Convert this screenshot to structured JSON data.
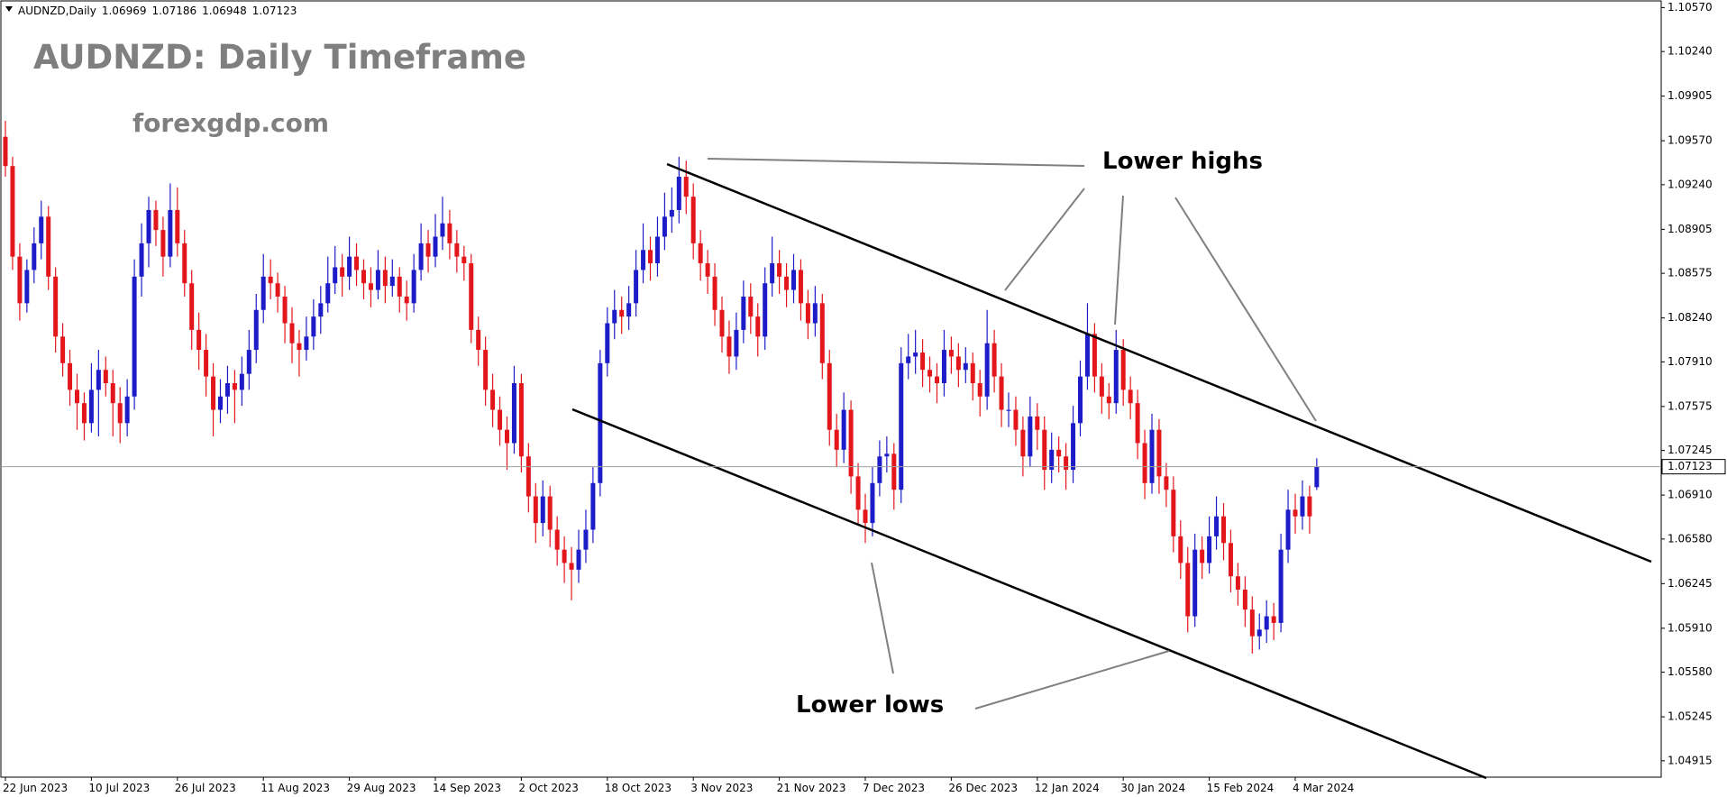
{
  "chart_data": {
    "type": "candlestick",
    "symbol": "AUDNZD,Daily",
    "title": "AUDNZD: Daily Timeframe",
    "subtitle": "forexgdp.com",
    "annotations": [
      "Lower highs",
      "Lower lows"
    ],
    "up_color": "#1c1cc8",
    "down_color": "#e3161c",
    "ylim": [
      1.04792,
      1.1062
    ],
    "yticks": [
      {
        "value": 1.1057,
        "label": "1.10570"
      },
      {
        "value": 1.1024,
        "label": "1.10240"
      },
      1.09905,
      {
        "value": 1.0957,
        "label": "1.09570"
      },
      {
        "value": 1.0924,
        "label": "1.09240"
      },
      1.08905,
      1.08575,
      {
        "value": 1.0824,
        "label": "1.08240"
      },
      {
        "value": 1.0791,
        "label": "1.07910"
      },
      1.07575,
      1.07245,
      {
        "value": 1.0691,
        "label": "1.06910"
      },
      {
        "value": 1.0658,
        "label": "1.06580"
      },
      1.06245,
      {
        "value": 1.0591,
        "label": "1.05910"
      },
      {
        "value": 1.0558,
        "label": "1.05580"
      },
      1.05245,
      1.04915
    ],
    "categories": [
      "22 Jun 2023",
      null,
      null,
      null,
      null,
      null,
      null,
      null,
      null,
      null,
      null,
      null,
      "10 Jul 2023",
      null,
      null,
      null,
      null,
      null,
      null,
      null,
      null,
      null,
      null,
      null,
      "26 Jul 2023",
      null,
      null,
      null,
      null,
      null,
      null,
      null,
      null,
      null,
      null,
      null,
      "11 Aug 2023",
      null,
      null,
      null,
      null,
      null,
      null,
      null,
      null,
      null,
      null,
      null,
      "29 Aug 2023",
      null,
      null,
      null,
      null,
      null,
      null,
      null,
      null,
      null,
      null,
      null,
      "14 Sep 2023",
      null,
      null,
      null,
      null,
      null,
      null,
      null,
      null,
      null,
      null,
      null,
      "2 Oct 2023",
      null,
      null,
      null,
      null,
      null,
      null,
      null,
      null,
      null,
      null,
      null,
      "18 Oct 2023",
      null,
      null,
      null,
      null,
      null,
      null,
      null,
      null,
      null,
      null,
      null,
      "3 Nov 2023",
      null,
      null,
      null,
      null,
      null,
      null,
      null,
      null,
      null,
      null,
      null,
      "21 Nov 2023",
      null,
      null,
      null,
      null,
      null,
      null,
      null,
      null,
      null,
      null,
      null,
      "7 Dec 2023",
      null,
      null,
      null,
      null,
      null,
      null,
      null,
      null,
      null,
      null,
      null,
      "26 Dec 2023",
      null,
      null,
      null,
      null,
      null,
      null,
      null,
      null,
      null,
      null,
      null,
      "12 Jan 2024",
      null,
      null,
      null,
      null,
      null,
      null,
      null,
      null,
      null,
      null,
      null,
      "30 Jan 2024",
      null,
      null,
      null,
      null,
      null,
      null,
      null,
      null,
      null,
      null,
      null,
      "15 Feb 2024",
      null,
      null,
      null,
      null,
      null,
      null,
      null,
      null,
      null,
      null,
      null,
      "4 Mar 2024",
      null,
      null,
      null
    ],
    "ohlc": [
      [
        1.096,
        1.0972,
        1.093,
        1.0938
      ],
      [
        1.0938,
        1.0945,
        1.086,
        1.087
      ],
      [
        1.087,
        1.088,
        1.0822,
        1.0835
      ],
      [
        1.0835,
        1.0868,
        1.0828,
        1.086
      ],
      [
        1.086,
        1.0892,
        1.085,
        1.088
      ],
      [
        1.088,
        1.0912,
        1.0868,
        1.09
      ],
      [
        1.09,
        1.0908,
        1.0845,
        1.0855
      ],
      [
        1.0855,
        1.0862,
        1.0798,
        1.081
      ],
      [
        1.081,
        1.082,
        1.078,
        1.079
      ],
      [
        1.079,
        1.08,
        1.0758,
        1.077
      ],
      [
        1.077,
        1.0782,
        1.074,
        1.076
      ],
      [
        1.076,
        1.0768,
        1.0732,
        1.0745
      ],
      [
        1.0745,
        1.079,
        1.0738,
        1.077
      ],
      [
        1.077,
        1.08,
        1.0735,
        1.0785
      ],
      [
        1.0785,
        1.0795,
        1.0765,
        1.0775
      ],
      [
        1.0775,
        1.0785,
        1.0735,
        1.076
      ],
      [
        1.076,
        1.0772,
        1.073,
        1.0745
      ],
      [
        1.0745,
        1.0778,
        1.0735,
        1.0765
      ],
      [
        1.0765,
        1.0868,
        1.0755,
        1.0855
      ],
      [
        1.0855,
        1.0895,
        1.084,
        1.088
      ],
      [
        1.088,
        1.0915,
        1.0862,
        1.0905
      ],
      [
        1.0905,
        1.0912,
        1.0878,
        1.089
      ],
      [
        1.089,
        1.09,
        1.0855,
        1.087
      ],
      [
        1.087,
        1.0925,
        1.0862,
        1.0905
      ],
      [
        1.0905,
        1.0922,
        1.087,
        1.088
      ],
      [
        1.088,
        1.089,
        1.084,
        1.085
      ],
      [
        1.085,
        1.086,
        1.08,
        1.0815
      ],
      [
        1.0815,
        1.0828,
        1.0785,
        1.08
      ],
      [
        1.08,
        1.0812,
        1.0765,
        1.078
      ],
      [
        1.078,
        1.079,
        1.0735,
        1.0755
      ],
      [
        1.0755,
        1.0778,
        1.0745,
        1.0765
      ],
      [
        1.0765,
        1.0788,
        1.0752,
        1.0775
      ],
      [
        1.0775,
        1.0785,
        1.0745,
        1.077
      ],
      [
        1.077,
        1.0795,
        1.0758,
        1.0782
      ],
      [
        1.0782,
        1.0815,
        1.077,
        1.08
      ],
      [
        1.08,
        1.0842,
        1.079,
        1.083
      ],
      [
        1.083,
        1.0872,
        1.082,
        1.0855
      ],
      [
        1.0855,
        1.0868,
        1.0838,
        1.085
      ],
      [
        1.085,
        1.0858,
        1.0828,
        1.084
      ],
      [
        1.084,
        1.0848,
        1.0805,
        1.082
      ],
      [
        1.082,
        1.0832,
        1.079,
        1.0805
      ],
      [
        1.0805,
        1.0815,
        1.078,
        1.08
      ],
      [
        1.08,
        1.0825,
        1.0792,
        1.081
      ],
      [
        1.081,
        1.0838,
        1.08,
        1.0825
      ],
      [
        1.0825,
        1.0848,
        1.0812,
        1.0835
      ],
      [
        1.0835,
        1.087,
        1.0828,
        1.085
      ],
      [
        1.085,
        1.0878,
        1.0842,
        1.0862
      ],
      [
        1.0862,
        1.0872,
        1.084,
        1.0855
      ],
      [
        1.0855,
        1.0885,
        1.0845,
        1.087
      ],
      [
        1.087,
        1.088,
        1.0848,
        1.086
      ],
      [
        1.086,
        1.0868,
        1.0838,
        1.085
      ],
      [
        1.085,
        1.0862,
        1.0832,
        1.0845
      ],
      [
        1.0845,
        1.0875,
        1.0838,
        1.086
      ],
      [
        1.086,
        1.087,
        1.0835,
        1.0848
      ],
      [
        1.0848,
        1.0868,
        1.084,
        1.0855
      ],
      [
        1.0855,
        1.0862,
        1.0828,
        1.084
      ],
      [
        1.084,
        1.0852,
        1.0822,
        1.0835
      ],
      [
        1.0835,
        1.0872,
        1.0828,
        1.086
      ],
      [
        1.086,
        1.0895,
        1.0852,
        1.088
      ],
      [
        1.088,
        1.089,
        1.0858,
        1.087
      ],
      [
        1.087,
        1.0902,
        1.0862,
        1.0885
      ],
      [
        1.0885,
        1.0915,
        1.0875,
        1.0895
      ],
      [
        1.0895,
        1.0905,
        1.0868,
        1.088
      ],
      [
        1.088,
        1.089,
        1.0858,
        1.087
      ],
      [
        1.087,
        1.0878,
        1.0852,
        1.0865
      ],
      [
        1.0865,
        1.0872,
        1.0805,
        1.0815
      ],
      [
        1.0815,
        1.0825,
        1.0788,
        1.08
      ],
      [
        1.08,
        1.081,
        1.0758,
        1.077
      ],
      [
        1.077,
        1.0782,
        1.0742,
        1.0755
      ],
      [
        1.0755,
        1.0765,
        1.0728,
        1.074
      ],
      [
        1.074,
        1.075,
        1.071,
        1.073
      ],
      [
        1.073,
        1.0788,
        1.0722,
        1.0775
      ],
      [
        1.0775,
        1.0782,
        1.0708,
        1.072
      ],
      [
        1.072,
        1.073,
        1.0678,
        1.069
      ],
      [
        1.069,
        1.07,
        1.0655,
        1.067
      ],
      [
        1.067,
        1.0702,
        1.066,
        1.069
      ],
      [
        1.069,
        1.0698,
        1.0652,
        1.0665
      ],
      [
        1.0665,
        1.0675,
        1.0638,
        1.065
      ],
      [
        1.065,
        1.066,
        1.0625,
        1.064
      ],
      [
        1.064,
        1.0652,
        1.0612,
        1.0635
      ],
      [
        1.0635,
        1.0665,
        1.0625,
        1.065
      ],
      [
        1.065,
        1.068,
        1.064,
        1.0665
      ],
      [
        1.0665,
        1.0712,
        1.0655,
        1.07
      ],
      [
        1.07,
        1.08,
        1.069,
        1.079
      ],
      [
        1.079,
        1.0832,
        1.078,
        1.082
      ],
      [
        1.082,
        1.0845,
        1.0808,
        1.083
      ],
      [
        1.083,
        1.084,
        1.0812,
        1.0825
      ],
      [
        1.0825,
        1.0848,
        1.0815,
        1.0835
      ],
      [
        1.0835,
        1.0875,
        1.0825,
        1.086
      ],
      [
        1.086,
        1.0895,
        1.085,
        1.0875
      ],
      [
        1.0875,
        1.0885,
        1.0852,
        1.0865
      ],
      [
        1.0865,
        1.09,
        1.0855,
        1.0885
      ],
      [
        1.0885,
        1.0918,
        1.0875,
        1.09
      ],
      [
        1.09,
        1.0922,
        1.0888,
        1.0905
      ],
      [
        1.0905,
        1.0945,
        1.0895,
        1.093
      ],
      [
        1.093,
        1.0942,
        1.0902,
        1.0915
      ],
      [
        1.0915,
        1.0925,
        1.0868,
        1.088
      ],
      [
        1.088,
        1.089,
        1.0852,
        1.0865
      ],
      [
        1.0865,
        1.0875,
        1.0842,
        1.0855
      ],
      [
        1.0855,
        1.0865,
        1.0818,
        1.083
      ],
      [
        1.083,
        1.084,
        1.0798,
        1.081
      ],
      [
        1.081,
        1.0822,
        1.0782,
        1.0795
      ],
      [
        1.0795,
        1.0828,
        1.0785,
        1.0815
      ],
      [
        1.0815,
        1.0852,
        1.0805,
        1.084
      ],
      [
        1.084,
        1.085,
        1.0812,
        1.0825
      ],
      [
        1.0825,
        1.0835,
        1.0795,
        1.081
      ],
      [
        1.081,
        1.0862,
        1.08,
        1.085
      ],
      [
        1.085,
        1.0885,
        1.084,
        1.0865
      ],
      [
        1.0865,
        1.0875,
        1.0842,
        1.0855
      ],
      [
        1.0855,
        1.0865,
        1.0832,
        1.0845
      ],
      [
        1.0845,
        1.0872,
        1.0835,
        1.086
      ],
      [
        1.086,
        1.0868,
        1.0822,
        1.0835
      ],
      [
        1.0835,
        1.0845,
        1.0808,
        1.082
      ],
      [
        1.082,
        1.0848,
        1.081,
        1.0835
      ],
      [
        1.0835,
        1.0842,
        1.0778,
        1.079
      ],
      [
        1.079,
        1.08,
        1.0728,
        1.074
      ],
      [
        1.074,
        1.0752,
        1.0712,
        1.0725
      ],
      [
        1.0725,
        1.0768,
        1.0715,
        1.0755
      ],
      [
        1.0755,
        1.0762,
        1.0692,
        1.0705
      ],
      [
        1.0705,
        1.0715,
        1.0668,
        1.068
      ],
      [
        1.068,
        1.0692,
        1.0655,
        1.067
      ],
      [
        1.067,
        1.0712,
        1.066,
        1.07
      ],
      [
        1.07,
        1.0732,
        1.069,
        1.072
      ],
      [
        1.072,
        1.0735,
        1.0708,
        1.0722
      ],
      [
        1.0722,
        1.073,
        1.068,
        1.0695
      ],
      [
        1.0695,
        1.0802,
        1.0685,
        1.079
      ],
      [
        1.079,
        1.0812,
        1.0778,
        1.0795
      ],
      [
        1.0795,
        1.0815,
        1.0782,
        1.0798
      ],
      [
        1.0798,
        1.0808,
        1.0772,
        1.0785
      ],
      [
        1.0785,
        1.0795,
        1.0768,
        1.078
      ],
      [
        1.078,
        1.079,
        1.076,
        1.0775
      ],
      [
        1.0775,
        1.0815,
        1.0765,
        1.08
      ],
      [
        1.08,
        1.081,
        1.0782,
        1.0795
      ],
      [
        1.0795,
        1.0805,
        1.0772,
        1.0785
      ],
      [
        1.0785,
        1.0802,
        1.0775,
        1.079
      ],
      [
        1.079,
        1.0798,
        1.0762,
        1.0775
      ],
      [
        1.0775,
        1.0785,
        1.075,
        1.0765
      ],
      [
        1.0765,
        1.083,
        1.0755,
        1.0805
      ],
      [
        1.0805,
        1.0815,
        1.0768,
        1.078
      ],
      [
        1.078,
        1.079,
        1.0742,
        1.0755
      ],
      [
        1.0755,
        1.0768,
        1.0742,
        1.0755
      ],
      [
        1.0755,
        1.0765,
        1.0728,
        1.074
      ],
      [
        1.074,
        1.075,
        1.0705,
        1.072
      ],
      [
        1.072,
        1.0765,
        1.0712,
        1.075
      ],
      [
        1.075,
        1.076,
        1.0725,
        1.074
      ],
      [
        1.074,
        1.075,
        1.0695,
        1.071
      ],
      [
        1.071,
        1.0738,
        1.07,
        1.0725
      ],
      [
        1.0725,
        1.0735,
        1.0708,
        1.072
      ],
      [
        1.072,
        1.073,
        1.0695,
        1.071
      ],
      [
        1.071,
        1.0758,
        1.07,
        1.0745
      ],
      [
        1.0745,
        1.0792,
        1.0735,
        1.078
      ],
      [
        1.078,
        1.0835,
        1.077,
        1.0812
      ],
      [
        1.0812,
        1.082,
        1.0768,
        1.078
      ],
      [
        1.078,
        1.079,
        1.0752,
        1.0765
      ],
      [
        1.0765,
        1.0775,
        1.0748,
        1.076
      ],
      [
        1.076,
        1.0815,
        1.0752,
        1.08
      ],
      [
        1.08,
        1.0808,
        1.0758,
        1.077
      ],
      [
        1.077,
        1.078,
        1.0748,
        1.076
      ],
      [
        1.076,
        1.077,
        1.0718,
        1.073
      ],
      [
        1.073,
        1.074,
        1.0688,
        1.07
      ],
      [
        1.07,
        1.0752,
        1.0692,
        1.074
      ],
      [
        1.074,
        1.0748,
        1.0692,
        1.0705
      ],
      [
        1.0705,
        1.0715,
        1.0682,
        1.0695
      ],
      [
        1.0695,
        1.0705,
        1.0648,
        1.066
      ],
      [
        1.066,
        1.0672,
        1.0628,
        1.064
      ],
      [
        1.064,
        1.0652,
        1.0588,
        1.06
      ],
      [
        1.06,
        1.0662,
        1.0592,
        1.065
      ],
      [
        1.065,
        1.066,
        1.0628,
        1.064
      ],
      [
        1.064,
        1.0675,
        1.0632,
        1.066
      ],
      [
        1.066,
        1.069,
        1.065,
        1.0675
      ],
      [
        1.0675,
        1.0685,
        1.0642,
        1.0655
      ],
      [
        1.0655,
        1.0665,
        1.0618,
        1.063
      ],
      [
        1.063,
        1.064,
        1.0608,
        1.062
      ],
      [
        1.062,
        1.063,
        1.0592,
        1.0605
      ],
      [
        1.0605,
        1.0615,
        1.0572,
        1.0585
      ],
      [
        1.0585,
        1.0602,
        1.0575,
        1.059
      ],
      [
        1.059,
        1.0612,
        1.058,
        1.06
      ],
      [
        1.06,
        1.061,
        1.0582,
        1.0595
      ],
      [
        1.0595,
        1.0662,
        1.0588,
        1.065
      ],
      [
        1.065,
        1.0695,
        1.064,
        1.068
      ],
      [
        1.068,
        1.0692,
        1.0662,
        1.0675
      ],
      [
        1.0675,
        1.0702,
        1.0665,
        1.069
      ],
      [
        1.069,
        1.0698,
        1.0662,
        1.0675
      ],
      [
        1.06969,
        1.07186,
        1.06948,
        1.07123
      ]
    ]
  }
}
